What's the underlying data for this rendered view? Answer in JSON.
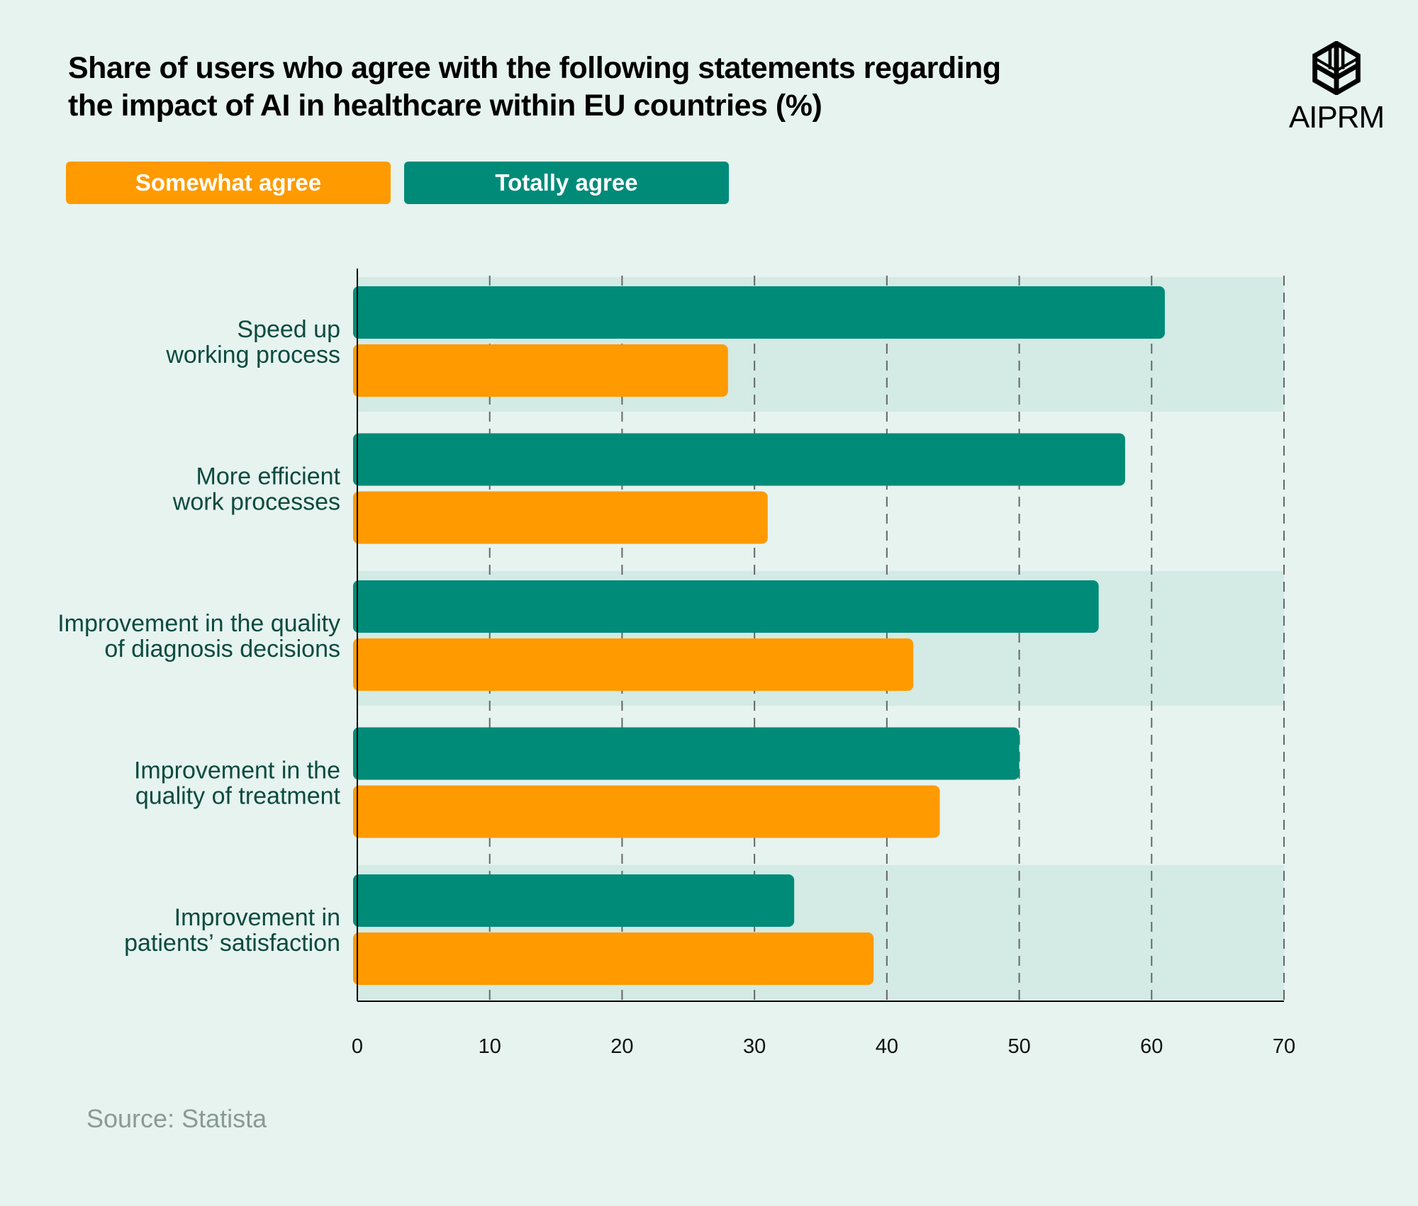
{
  "chart_data": {
    "type": "bar",
    "orientation": "horizontal",
    "title": "Share of users who agree with the following statements regarding the impact of AI in healthcare within EU countries (%)",
    "title_lines": [
      "Share of users who agree with the following statements regarding",
      "the impact of AI in healthcare within EU countries (%)"
    ],
    "categories": [
      [
        "Speed up",
        "working process"
      ],
      [
        "More efficient",
        "work processes"
      ],
      [
        "Improvement in the quality",
        "of diagnosis decisions"
      ],
      [
        "Improvement in the",
        "quality of treatment"
      ],
      [
        "Improvement in",
        "patients’ satisfaction"
      ]
    ],
    "series": [
      {
        "name": "Totally agree",
        "color": "#008b78",
        "values": [
          61,
          58,
          56,
          50,
          33
        ]
      },
      {
        "name": "Somewhat agree",
        "color": "#ff9a00",
        "values": [
          28,
          31,
          42,
          44,
          39
        ]
      }
    ],
    "xlim": [
      0,
      70
    ],
    "xticks": [
      "0",
      "10",
      "20",
      "30",
      "40",
      "50",
      "60",
      "70"
    ],
    "grid": "vertical dashed",
    "legend_placement": "top-left"
  },
  "legend": [
    {
      "label": "Somewhat agree",
      "color": "#ff9a00"
    },
    {
      "label": "Totally agree",
      "color": "#008b78"
    }
  ],
  "brand": {
    "logo_text": "AIPRM"
  },
  "source": "Source: Statista"
}
